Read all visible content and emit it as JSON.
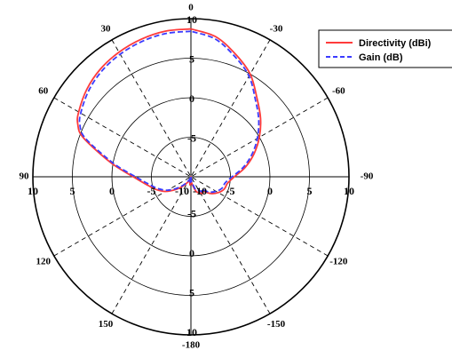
{
  "chart_data": {
    "type": "polar-line",
    "radial_axis": {
      "min": -10,
      "max": 10,
      "rings": [
        -5,
        0,
        5,
        10
      ],
      "tick_labels": [
        "10",
        "5",
        "0",
        "-5",
        "-10"
      ],
      "center_label": "-10"
    },
    "angle_labels": [
      "0",
      "30",
      "-30",
      "60",
      "-60",
      "90",
      "-90",
      "120",
      "-120",
      "150",
      "-150",
      "-180"
    ],
    "angle_label_values": [
      0,
      30,
      -30,
      60,
      -60,
      90,
      -90,
      120,
      -120,
      150,
      -150,
      180
    ],
    "legend": {
      "position": "top-right",
      "entries": [
        {
          "label": "Directivity (dBi)",
          "color": "#ff3b3b",
          "style": "solid"
        },
        {
          "label": "Gain (dB)",
          "color": "#3b3bff",
          "style": "dashed"
        }
      ]
    },
    "grid": true,
    "series": [
      {
        "name": "Directivity (dBi)",
        "color": "#ff3b3b",
        "theta": [
          0,
          10,
          20,
          30,
          40,
          50,
          60,
          65,
          70,
          80,
          90,
          100,
          110,
          120,
          130,
          140,
          150,
          160,
          170,
          175,
          180,
          185,
          190,
          200,
          210,
          215,
          220,
          230,
          240,
          250,
          260,
          270,
          280,
          290,
          300,
          310,
          320,
          330,
          340,
          350,
          360
        ],
        "r": [
          8.7,
          8.7,
          8.5,
          8.2,
          7.8,
          7.2,
          6.4,
          5.8,
          4.5,
          0.3,
          -2.7,
          -4.3,
          -5.3,
          -6.3,
          -7.5,
          -8.5,
          -9.2,
          -9.7,
          -9.2,
          -9.0,
          -10,
          -9.4,
          -9.0,
          -8.0,
          -7.7,
          -7.4,
          -7.6,
          -6.7,
          -6.0,
          -5.5,
          -5.3,
          -4.5,
          -3.0,
          -1.5,
          0.0,
          1.5,
          3.0,
          5.0,
          6.5,
          8.0,
          8.7
        ]
      },
      {
        "name": "Gain (dB)",
        "color": "#3b3bff",
        "theta": [
          0,
          10,
          20,
          30,
          40,
          50,
          60,
          65,
          70,
          80,
          90,
          100,
          110,
          120,
          130,
          140,
          150,
          160,
          170,
          175,
          180,
          185,
          190,
          200,
          210,
          215,
          220,
          230,
          240,
          250,
          260,
          270,
          280,
          290,
          300,
          310,
          320,
          330,
          340,
          350,
          360
        ],
        "r": [
          8.4,
          8.4,
          8.2,
          7.9,
          7.5,
          6.9,
          6.1,
          5.5,
          4.2,
          0.0,
          -3.0,
          -4.6,
          -5.6,
          -6.6,
          -7.8,
          -8.8,
          -9.5,
          -9.9,
          -9.5,
          -9.3,
          -10,
          -9.6,
          -9.3,
          -8.3,
          -8.0,
          -7.7,
          -7.9,
          -7.0,
          -6.3,
          -5.8,
          -5.6,
          -4.8,
          -3.3,
          -1.8,
          -0.3,
          1.2,
          2.7,
          4.7,
          6.2,
          7.7,
          8.4
        ]
      }
    ]
  }
}
